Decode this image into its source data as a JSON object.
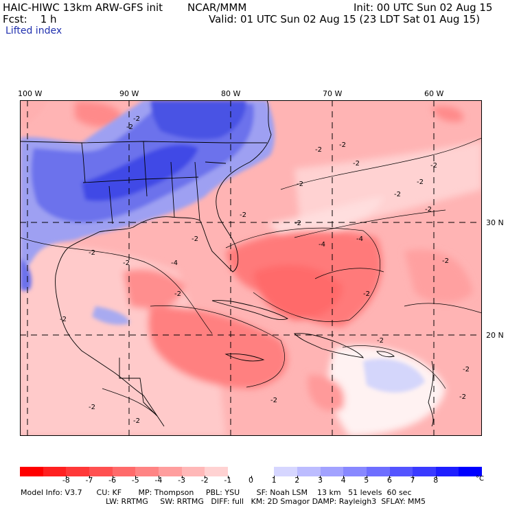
{
  "header": {
    "title": "HAIC-HIWC 13km ARW-GFS init",
    "center": "NCAR/MMM",
    "init": "Init: 00 UTC Sun 02 Aug 15",
    "fcst": "Fcst:    1 h",
    "valid": "Valid: 01 UTC Sun 02 Aug 15 (23 LDT Sat 01 Aug 15)",
    "field": "Lifted index"
  },
  "map": {
    "lon_labels": [
      "100 W",
      "90 W",
      "80 W",
      "70 W",
      "60 W"
    ],
    "lat_labels": [
      "30 N",
      "20 N"
    ],
    "contour_labels": [
      "-2",
      "-2",
      "-2",
      "-2",
      "-2",
      "-2",
      "-2",
      "-2",
      "-2",
      "-2",
      "-2",
      "-2",
      "-4",
      "-4",
      "-4",
      "-2",
      "-2",
      "-2",
      "-2",
      "-2",
      "-2",
      "-2",
      "-2",
      "-2",
      "-2",
      "-2",
      "-2",
      "-2"
    ]
  },
  "colorbar": {
    "colors": [
      "#ff0000",
      "#ff2020",
      "#ff3838",
      "#ff5050",
      "#ff6a6a",
      "#ff8484",
      "#ff9e9e",
      "#ffb8b8",
      "#ffd2d2",
      "#ffffff",
      "#ffffff",
      "#d6d6ff",
      "#bcbcff",
      "#a2a2ff",
      "#8888ff",
      "#6e6eff",
      "#5454ff",
      "#3a3aff",
      "#1e1eff",
      "#0000ff"
    ],
    "labels": [
      "-8",
      "-7",
      "-6",
      "-5",
      "-4",
      "-3",
      "-2",
      "-1",
      "0",
      "1",
      "2",
      "3",
      "4",
      "5",
      "6",
      "7",
      "8"
    ],
    "unit": "°C"
  },
  "model_info": {
    "line1": "Model Info: V3.7      CU: KF       MP: Thompson     PBL: YSU       SF: Noah LSM    13 km   51 levels  60 sec",
    "line2": "LW: RRTMG     SW: RRTMG   DIFF: full   KM: 2D Smagor DAMP: Rayleigh3  SFLAY: MM5"
  }
}
